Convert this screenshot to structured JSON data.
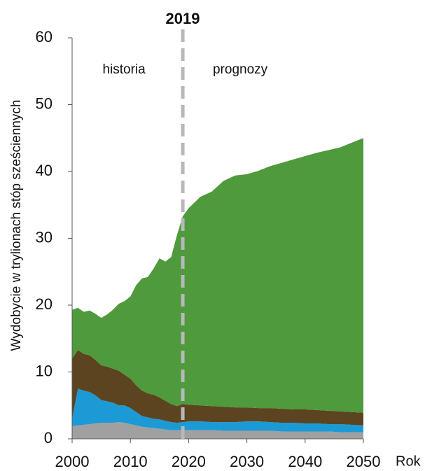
{
  "chart_data": {
    "type": "stacked_area",
    "title": "2019",
    "vline": 2019,
    "annotations": [
      "historia",
      "prognozy"
    ],
    "ylabel": "Wydobycie w trylionach stóp sześciennych",
    "xlabel": "Rok",
    "x": [
      2000,
      2001,
      2002,
      2003,
      2004,
      2005,
      2006,
      2007,
      2008,
      2009,
      2010,
      2011,
      2012,
      2013,
      2014,
      2015,
      2016,
      2017,
      2018,
      2019,
      2020,
      2022,
      2024,
      2026,
      2028,
      2030,
      2032,
      2034,
      2036,
      2038,
      2040,
      2042,
      2044,
      2046,
      2048,
      2050
    ],
    "series": [
      {
        "color": "#a0a0a0",
        "values": [
          1.9,
          2.0,
          2.1,
          2.2,
          2.3,
          2.4,
          2.4,
          2.4,
          2.5,
          2.4,
          2.2,
          2.0,
          1.8,
          1.7,
          1.6,
          1.5,
          1.4,
          1.3,
          1.3,
          1.3,
          1.3,
          1.3,
          1.3,
          1.2,
          1.2,
          1.2,
          1.2,
          1.2,
          1.1,
          1.1,
          1.1,
          1.1,
          1.1,
          1.0,
          1.0,
          1.0
        ]
      },
      {
        "color": "#1b9ad6",
        "values": [
          1.1,
          5.5,
          5.1,
          4.8,
          4.2,
          3.4,
          3.2,
          3.0,
          2.5,
          2.6,
          2.4,
          2.0,
          1.6,
          1.5,
          1.4,
          1.4,
          1.3,
          1.2,
          1.1,
          1.2,
          1.3,
          1.3,
          1.2,
          1.3,
          1.3,
          1.4,
          1.4,
          1.3,
          1.3,
          1.3,
          1.2,
          1.2,
          1.1,
          1.2,
          1.1,
          1.0
        ]
      },
      {
        "color": "#5c4420",
        "values": [
          9.0,
          5.8,
          5.5,
          5.5,
          5.3,
          5.2,
          5.2,
          5.1,
          5.2,
          4.6,
          4.4,
          4.0,
          3.8,
          3.6,
          3.6,
          3.3,
          3.0,
          2.7,
          2.5,
          2.7,
          2.5,
          2.4,
          2.4,
          2.3,
          2.2,
          2.1,
          2.0,
          2.1,
          2.1,
          2.0,
          2.1,
          2.0,
          2.0,
          1.9,
          1.9,
          1.9
        ]
      },
      {
        "color": "#4e9a3c",
        "values": [
          7.3,
          6.3,
          6.3,
          6.7,
          6.9,
          7.1,
          7.8,
          8.8,
          10.0,
          11.0,
          12.3,
          15.0,
          16.8,
          17.4,
          18.9,
          20.8,
          20.8,
          22.0,
          25.6,
          28.1,
          29.4,
          31.2,
          32.1,
          33.8,
          34.7,
          34.9,
          35.5,
          36.2,
          36.8,
          37.4,
          37.9,
          38.5,
          39.0,
          39.5,
          40.3,
          41.1
        ]
      }
    ],
    "xlim": [
      2000,
      2050
    ],
    "xticks": [
      2000,
      2010,
      2020,
      2030,
      2040,
      2050
    ],
    "ylim": [
      0,
      60
    ],
    "yticks": [
      0,
      10,
      20,
      30,
      40,
      50,
      60
    ],
    "grid": false
  }
}
